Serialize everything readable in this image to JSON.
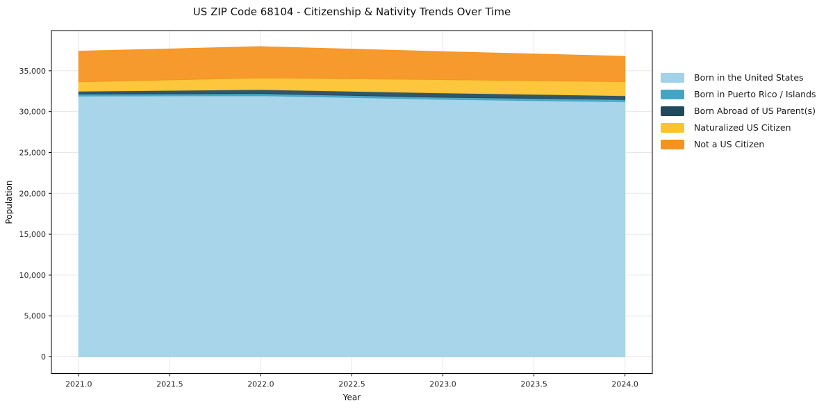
{
  "figure": {
    "title": "US ZIP Code 68104 - Citizenship & Nativity Trends Over Time"
  },
  "chart_data": {
    "type": "area",
    "stacked": true,
    "title": "US ZIP Code 68104 - Citizenship & Nativity Trends Over Time",
    "xlabel": "Year",
    "ylabel": "Population",
    "x": [
      2021,
      2022,
      2023,
      2024
    ],
    "series": [
      {
        "name": "Born in the United States",
        "color": "#A1D2E8",
        "values": [
          31900,
          31950,
          31500,
          31200
        ]
      },
      {
        "name": "Born in Puerto Rico / Islands",
        "color": "#41A6C4",
        "values": [
          250,
          250,
          260,
          280
        ]
      },
      {
        "name": "Born Abroad of US Parent(s)",
        "color": "#21495C",
        "values": [
          350,
          500,
          530,
          470
        ]
      },
      {
        "name": "Naturalized US Citizen",
        "color": "#FCC32D",
        "values": [
          1150,
          1430,
          1630,
          1720
        ]
      },
      {
        "name": "Not a US Citizen",
        "color": "#F6921E",
        "values": [
          3750,
          3830,
          3420,
          3100
        ]
      }
    ],
    "totals": [
      37400,
      37960,
      37340,
      36770
    ],
    "xlim": [
      2020.85,
      2024.15
    ],
    "ylim": [
      -2040,
      39920
    ],
    "xticks": {
      "values": [
        2021.0,
        2021.5,
        2022.0,
        2022.5,
        2023.0,
        2023.5,
        2024.0
      ],
      "labels": [
        "2021.0",
        "2021.5",
        "2022.0",
        "2022.5",
        "2023.0",
        "2023.5",
        "2024.0"
      ]
    },
    "yticks": {
      "values": [
        0,
        5000,
        10000,
        15000,
        20000,
        25000,
        30000,
        35000
      ],
      "labels": [
        "0",
        "5,000",
        "10,000",
        "15,000",
        "20,000",
        "25,000",
        "30,000",
        "35,000"
      ]
    },
    "grid": true,
    "grid_color": "#e7e7e7",
    "spine_color": "#000000",
    "tick_text_color": "#262626",
    "legend_position": "right-outside"
  }
}
